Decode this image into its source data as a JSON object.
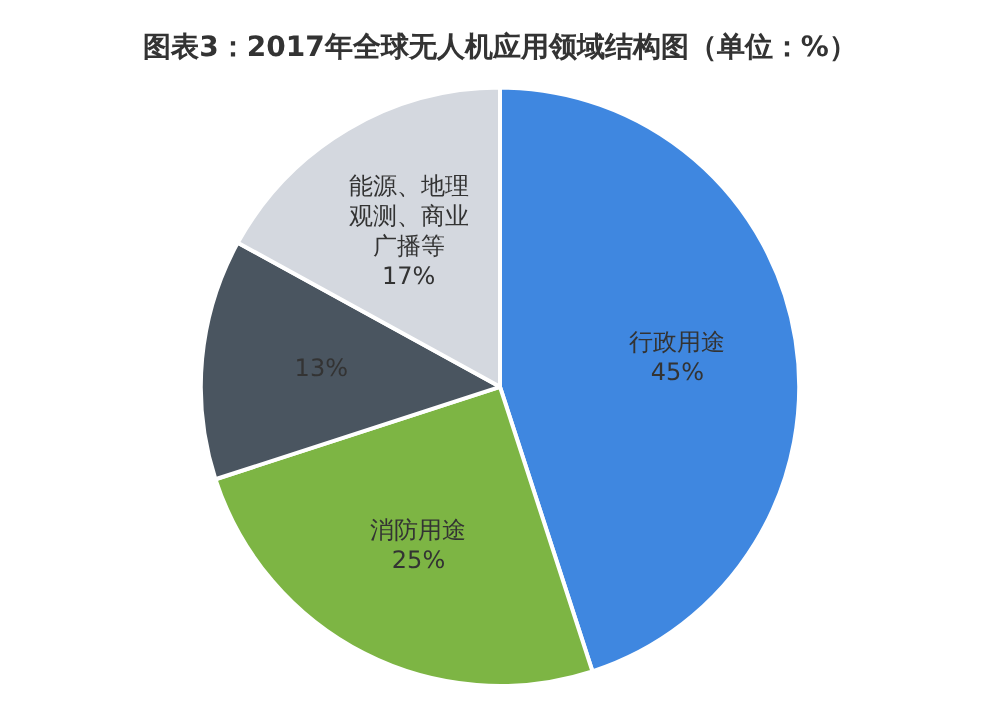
{
  "chart_data": {
    "type": "pie",
    "title": "图表3：2017年全球无人机应用领域结构图（单位：%）",
    "categories": [
      "行政用途",
      "消防用途",
      null,
      "能源、地理观测、商业广播等"
    ],
    "values": [
      45,
      25,
      13,
      17
    ],
    "colors": [
      "#3f87e0",
      "#7db544",
      "#4a5560",
      "#d4d8df"
    ],
    "value_labels": [
      "45%",
      "25%",
      "13%",
      "17%"
    ],
    "legend": false
  }
}
